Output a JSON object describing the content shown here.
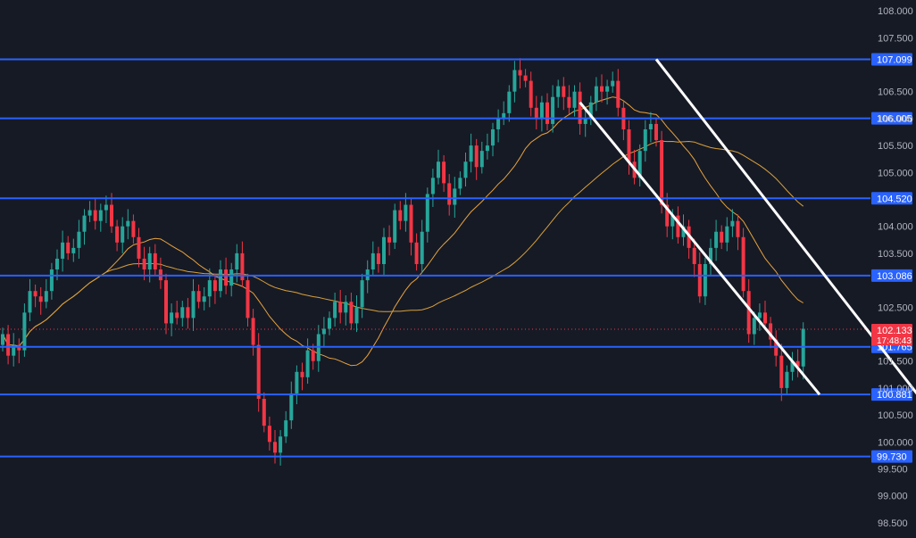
{
  "colors": {
    "background": "#161a25",
    "bull": "#26a69a",
    "bear": "#f23645",
    "level_line": "#2962ff",
    "channel": "#ffffff",
    "ma_fast": "#e8a33d",
    "ma_slow": "#d9a03a",
    "axis_text": "#b2b5be",
    "price_tag": "#f23645"
  },
  "chart_data": {
    "type": "candlestick",
    "y_axis": {
      "ylim": [
        98.3,
        108.2
      ],
      "ticks": [
        "108.000",
        "107.500",
        "106.500",
        "106.000",
        "105.500",
        "105.000",
        "104.000",
        "103.500",
        "102.500",
        "101.500",
        "101.000",
        "100.500",
        "100.000",
        "99.500",
        "99.000",
        "98.500"
      ]
    },
    "grid": false,
    "horizontal_levels": [
      "107.099",
      "106.005",
      "104.520",
      "103.086",
      "101.765",
      "100.881",
      "99.730"
    ],
    "current_price": {
      "value": "102.133",
      "countdown": "17:48:43"
    },
    "channel_lines": [
      {
        "from": {
          "bar": 106,
          "price": 106.3
        },
        "to": {
          "bar": 150,
          "price": 100.88
        }
      },
      {
        "from": {
          "bar": 120,
          "price": 107.1
        },
        "to": {
          "bar": 168,
          "price": 100.88
        }
      }
    ],
    "candles_close": [
      102.0,
      101.6,
      101.8,
      101.7,
      102.4,
      102.8,
      102.7,
      102.6,
      102.8,
      103.2,
      103.4,
      103.7,
      103.5,
      103.6,
      103.9,
      104.2,
      104.3,
      104.1,
      104.3,
      104.4,
      104.0,
      103.7,
      104.0,
      104.1,
      103.8,
      103.4,
      103.2,
      103.5,
      103.2,
      103.0,
      102.2,
      102.4,
      102.3,
      102.5,
      102.3,
      102.8,
      102.6,
      102.7,
      103.0,
      102.8,
      103.2,
      102.9,
      103.2,
      103.5,
      103.0,
      102.3,
      101.8,
      100.8,
      100.3,
      100.0,
      99.8,
      100.1,
      100.4,
      100.9,
      101.3,
      101.2,
      101.7,
      101.5,
      102.0,
      102.1,
      102.3,
      102.6,
      102.4,
      102.6,
      102.2,
      102.5,
      103.0,
      103.2,
      103.5,
      103.3,
      103.8,
      103.7,
      104.3,
      104.1,
      104.4,
      103.7,
      103.3,
      103.9,
      104.6,
      104.9,
      105.2,
      104.8,
      104.4,
      104.7,
      104.9,
      105.2,
      105.5,
      105.1,
      105.4,
      105.5,
      105.8,
      106.0,
      106.1,
      106.5,
      106.9,
      106.8,
      106.7,
      106.2,
      106.0,
      106.3,
      105.9,
      106.4,
      106.6,
      106.4,
      106.2,
      106.5,
      105.9,
      106.0,
      106.3,
      106.6,
      106.5,
      106.6,
      106.7,
      106.2,
      105.8,
      105.2,
      104.9,
      105.4,
      105.8,
      105.9,
      105.6,
      104.4,
      104.0,
      104.2,
      103.8,
      104.0,
      103.6,
      103.3,
      102.7,
      103.3,
      103.6,
      103.9,
      103.7,
      104.0,
      104.1,
      103.8,
      102.8,
      102.0,
      102.3,
      102.4,
      102.2,
      101.9,
      101.6,
      101.0,
      101.3,
      101.5,
      101.4,
      102.1
    ]
  }
}
